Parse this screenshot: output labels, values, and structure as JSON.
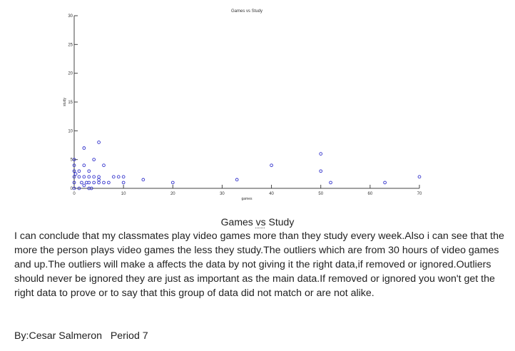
{
  "chart_data": {
    "type": "scatter",
    "title": "Games vs Study",
    "xlabel": "games",
    "ylabel": "study",
    "xlim": [
      0,
      70
    ],
    "ylim": [
      0,
      30
    ],
    "xticks": [
      0,
      10,
      20,
      30,
      40,
      50,
      60,
      70
    ],
    "yticks": [
      0,
      5,
      10,
      15,
      20,
      25,
      30
    ],
    "xtick_labels": [
      "0",
      "10",
      "20",
      "30",
      "40",
      "50",
      "60",
      "70"
    ],
    "ytick_labels": [
      "0",
      "5",
      "10",
      "15",
      "20",
      "25",
      "30"
    ],
    "grid": false,
    "legend": "none",
    "marker_color": "#3333cc",
    "points": [
      {
        "x": 0,
        "y": 0
      },
      {
        "x": 0,
        "y": 1
      },
      {
        "x": 0,
        "y": 2
      },
      {
        "x": 0,
        "y": 3
      },
      {
        "x": 0,
        "y": 4
      },
      {
        "x": 0,
        "y": 5
      },
      {
        "x": 0.3,
        "y": 2.5
      },
      {
        "x": 1,
        "y": 0
      },
      {
        "x": 1,
        "y": 2
      },
      {
        "x": 1,
        "y": 3
      },
      {
        "x": 1.5,
        "y": 1
      },
      {
        "x": 2,
        "y": 0.5
      },
      {
        "x": 2,
        "y": 2
      },
      {
        "x": 2,
        "y": 4
      },
      {
        "x": 2,
        "y": 7
      },
      {
        "x": 2.5,
        "y": 1
      },
      {
        "x": 3,
        "y": 0
      },
      {
        "x": 3,
        "y": 1
      },
      {
        "x": 3,
        "y": 2
      },
      {
        "x": 3,
        "y": 3
      },
      {
        "x": 3.5,
        "y": 0
      },
      {
        "x": 4,
        "y": 1
      },
      {
        "x": 4,
        "y": 2
      },
      {
        "x": 4,
        "y": 5
      },
      {
        "x": 5,
        "y": 1
      },
      {
        "x": 5,
        "y": 1.5
      },
      {
        "x": 5,
        "y": 2
      },
      {
        "x": 5,
        "y": 8
      },
      {
        "x": 6,
        "y": 1
      },
      {
        "x": 6,
        "y": 4
      },
      {
        "x": 7,
        "y": 1
      },
      {
        "x": 8,
        "y": 2
      },
      {
        "x": 9,
        "y": 2
      },
      {
        "x": 10,
        "y": 1
      },
      {
        "x": 10,
        "y": 2
      },
      {
        "x": 14,
        "y": 1.5
      },
      {
        "x": 20,
        "y": 1
      },
      {
        "x": 33,
        "y": 1.5
      },
      {
        "x": 40,
        "y": 4
      },
      {
        "x": 50,
        "y": 3
      },
      {
        "x": 50,
        "y": 6
      },
      {
        "x": 52,
        "y": 1
      },
      {
        "x": 63,
        "y": 1
      },
      {
        "x": 70,
        "y": 2
      }
    ]
  },
  "caption": {
    "before": "Games ",
    "vs": "vs",
    "after": " Study"
  },
  "paragraph": "I can conclude that my classmates play video games more than they study every week.Also i can see that the more the person plays video games the less they study.The outliers which are from 30 hours of video games and up.The outliers  will make a affects the data by not giving it the right data,if removed or ignored.Outliers should never be ignored they are just as important as the main data.If removed or ignored you won't get the right data to prove or to say that this group of data did not match or are not alike.",
  "byline": "By:Cesar Salmeron   Period 7"
}
